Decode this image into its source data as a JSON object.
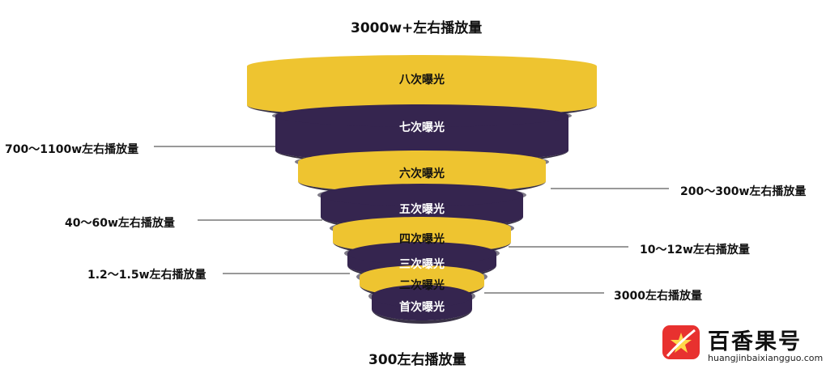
{
  "top_label": "3000w+左右播放量",
  "bottom_label": "300左右播放量",
  "colors": {
    "yellow": "#EEC430",
    "purple": "#35254F",
    "purple_dark": "#160E26",
    "yellow_dark": "#1E1426"
  },
  "levels": [
    {
      "label": "八次曝光",
      "color": "yellow"
    },
    {
      "label": "七次曝光",
      "color": "purple"
    },
    {
      "label": "六次曝光",
      "color": "yellow"
    },
    {
      "label": "五次曝光",
      "color": "purple"
    },
    {
      "label": "四次曝光",
      "color": "yellow"
    },
    {
      "label": "三次曝光",
      "color": "purple"
    },
    {
      "label": "二次曝光",
      "color": "yellow"
    },
    {
      "label": "首次曝光",
      "color": "purple"
    }
  ],
  "callouts": {
    "left": [
      "700～1100w左右播放量",
      "40～60w左右播放量",
      "1.2～1.5w左右播放量"
    ],
    "right": [
      "200～300w左右播放量",
      "10～12w左右播放量",
      "3000左右播放量"
    ]
  },
  "watermark": {
    "name": "百香果号",
    "url": "huangjinbaixiangguo.com"
  }
}
